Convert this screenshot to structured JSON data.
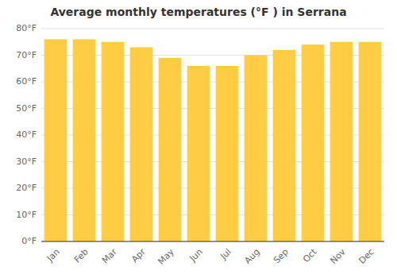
{
  "chart_data": {
    "type": "bar",
    "title": "Average monthly temperatures (°F ) in Serrana",
    "categories": [
      "Jan",
      "Feb",
      "Mar",
      "Apr",
      "May",
      "Jun",
      "Jul",
      "Aug",
      "Sep",
      "Oct",
      "Nov",
      "Dec"
    ],
    "values": [
      76,
      76,
      75,
      73,
      69,
      66,
      66,
      70,
      72,
      74,
      75,
      75
    ],
    "color": "#FFCC44",
    "ylim": [
      0,
      80
    ],
    "yticks": [
      {
        "value": 0,
        "label": "0°F"
      },
      {
        "value": 10,
        "label": "10°F"
      },
      {
        "value": 20,
        "label": "20°F"
      },
      {
        "value": 30,
        "label": "30°F"
      },
      {
        "value": 40,
        "label": "40°F"
      },
      {
        "value": 50,
        "label": "50°F"
      },
      {
        "value": 60,
        "label": "60°F"
      },
      {
        "value": 70,
        "label": "70°F"
      },
      {
        "value": 80,
        "label": "80°F"
      }
    ],
    "grid": true
  }
}
